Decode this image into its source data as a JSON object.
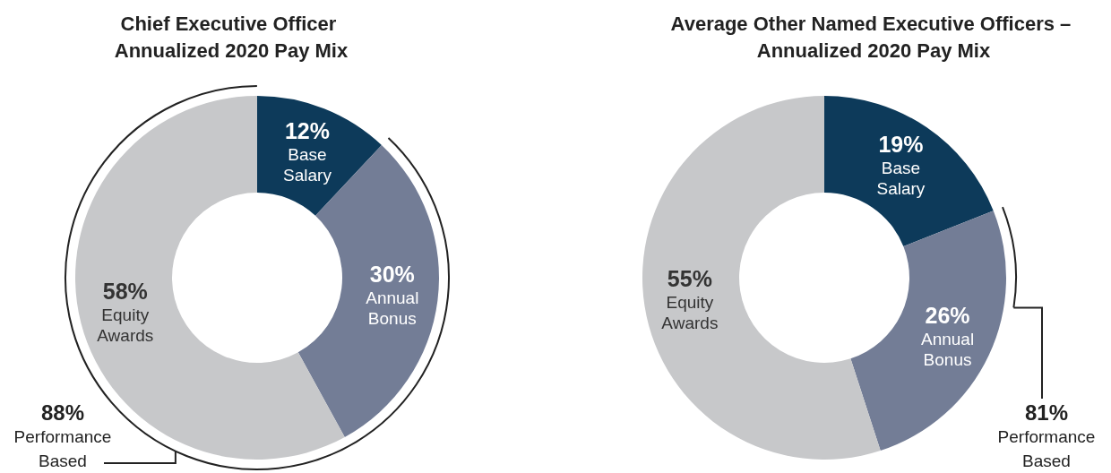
{
  "chart_data": [
    {
      "type": "donut",
      "title": "Chief Executive Officer Annualized 2020 Pay Mix",
      "categories": [
        "Base Salary",
        "Annual Bonus",
        "Equity Awards"
      ],
      "values": [
        12,
        30,
        58
      ],
      "value_labels": [
        "12%",
        "30%",
        "58%"
      ],
      "colors": [
        "#0d3a5a",
        "#737d96",
        "#c7c8ca"
      ],
      "legend": false,
      "annotations": [
        "88%",
        "Performance Based"
      ]
    },
    {
      "type": "donut",
      "title": "Average Other Named Executive Officers – Annualized 2020 Pay Mix",
      "categories": [
        "Base Salary",
        "Annual Bonus",
        "Equity Awards"
      ],
      "values": [
        19,
        26,
        55
      ],
      "value_labels": [
        "19%",
        "26%",
        "55%"
      ],
      "colors": [
        "#0d3a5a",
        "#737d96",
        "#c7c8ca"
      ],
      "legend": false,
      "annotations": [
        "81%",
        "Performance Based"
      ]
    }
  ]
}
